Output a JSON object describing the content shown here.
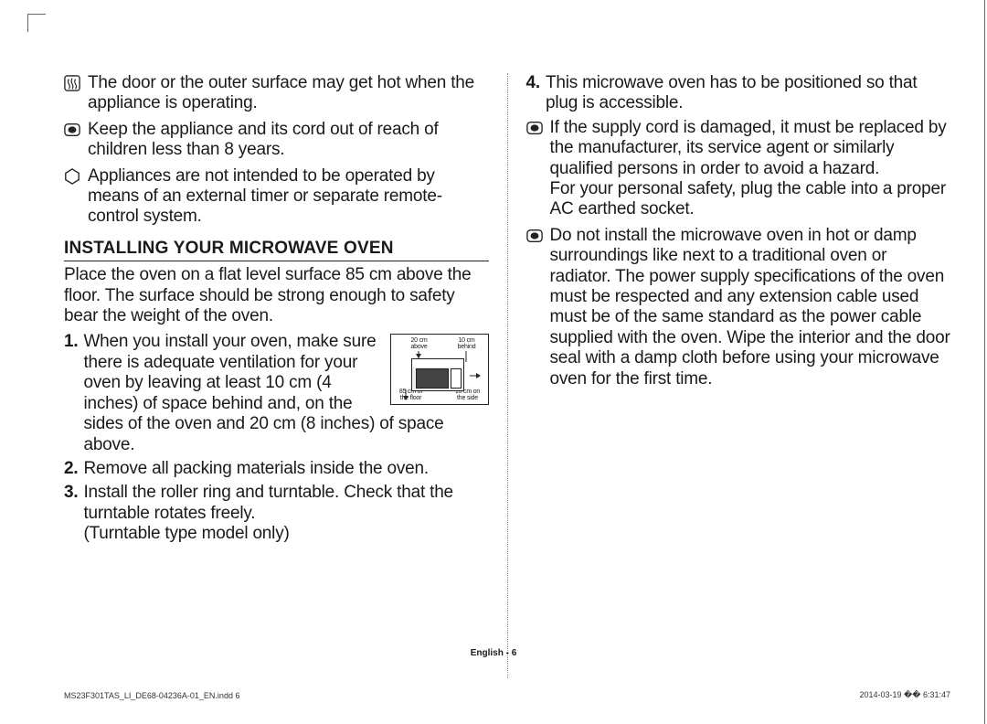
{
  "warnings": [
    {
      "icon": "hot-surface-icon",
      "svg": "hot",
      "text": "The door or the outer surface may get hot when the appliance is operating."
    },
    {
      "icon": "keep-away-icon",
      "svg": "rect",
      "text": "Keep the appliance and its cord out of reach of children less than 8 years."
    },
    {
      "icon": "no-timer-icon",
      "svg": "hex",
      "text": "Appliances are not intended to be operated by means of an external timer or separate remote-control system."
    }
  ],
  "section_title": "INSTALLING YOUR MICROWAVE OVEN",
  "intro": "Place the oven on a flat level surface 85 cm above the floor. The surface should be strong enough to safety bear the weight of the oven.",
  "steps_left": [
    {
      "n": "1.",
      "text": "When you install your oven, make sure there is adequate ventilation for your oven by leaving at least 10 cm (4 inches) of space behind and, on the sides of the oven and 20 cm (8 inches) of space above.",
      "has_diagram": true
    },
    {
      "n": "2.",
      "text": "Remove all packing materials inside the oven."
    },
    {
      "n": "3.",
      "text": "Install the roller ring and turntable. Check that the turntable rotates freely.\n(Turntable type model only)"
    }
  ],
  "steps_right": [
    {
      "n": "4.",
      "text": "This microwave oven has to be positioned so that plug is accessible."
    }
  ],
  "right_bullets": [
    {
      "icon": "info-icon",
      "svg": "rect",
      "text": "If the supply cord is damaged, it must be replaced by the manufacturer, its service agent or similarly qualified persons in order to avoid a hazard.\nFor your personal safety, plug the cable into a proper AC earthed socket."
    },
    {
      "icon": "info-icon",
      "svg": "rect",
      "text": "Do not install the microwave oven in hot or damp surroundings like next to a traditional oven or radiator. The power supply specifications of the oven must be respected and any extension cable used must be of the same standard as the power cable supplied with the oven. Wipe the interior and the door seal with a damp cloth before using your microwave oven for the first time."
    }
  ],
  "diagram": {
    "above": "20 cm above",
    "behind": "10 cm behind",
    "floor": "85 cm of the floor",
    "side": "10 cm on the side"
  },
  "footer": "English - 6",
  "footnote_left": "MS23F301TAS_LI_DE68-04236A-01_EN.indd   6",
  "footnote_right": "2014-03-19   �� 6:31:47"
}
